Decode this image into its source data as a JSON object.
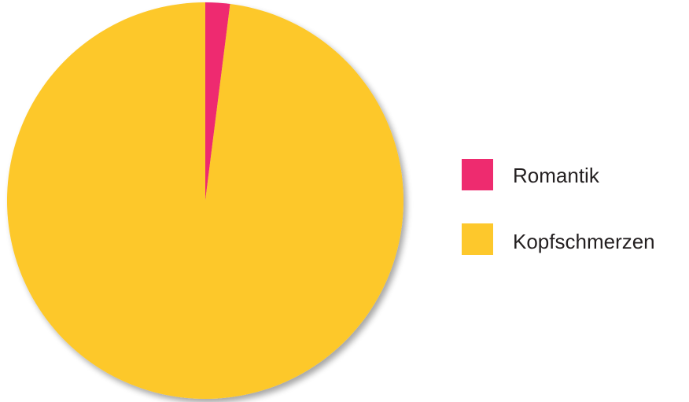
{
  "chart_data": {
    "type": "pie",
    "title": "",
    "series": [
      {
        "name": "Romantik",
        "value": 2,
        "color": "#ee2b6f"
      },
      {
        "name": "Kopfschmerzen",
        "value": 98,
        "color": "#fdc82c"
      }
    ],
    "start_angle": "top",
    "direction": "clockwise",
    "legend": {
      "placement": "right",
      "entries": [
        "Romantik",
        "Kopfschmerzen"
      ]
    }
  }
}
